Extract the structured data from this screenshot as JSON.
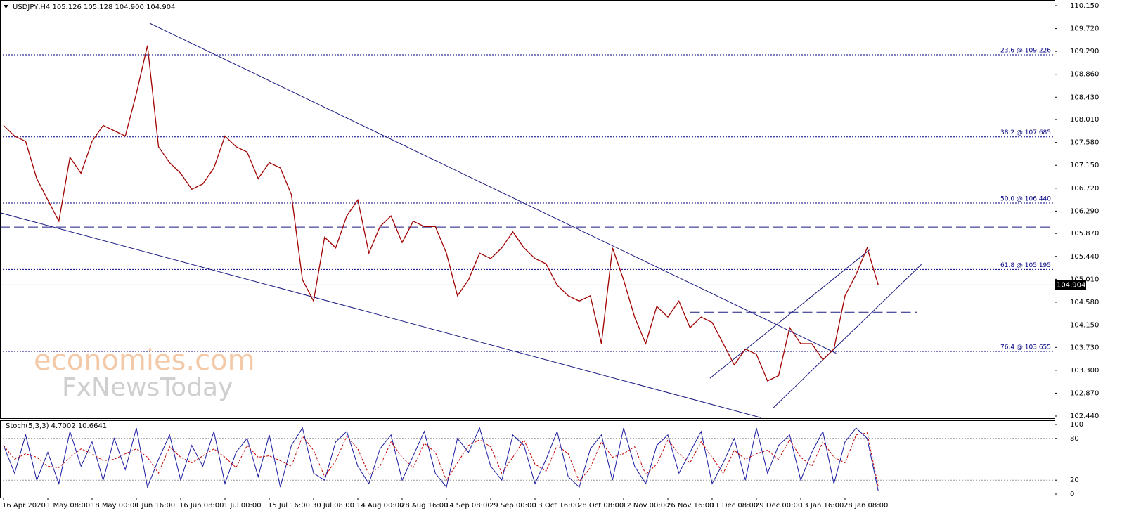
{
  "chart_data": [
    {
      "type": "line",
      "title": "USDJPY,H4  105.126 105.128 104.900 104.904",
      "color": "#a00000",
      "values": [
        107.9,
        107.7,
        107.6,
        106.9,
        106.5,
        106.1,
        107.3,
        107.0,
        107.6,
        107.9,
        107.8,
        107.7,
        108.5,
        109.4,
        107.5,
        107.2,
        107.0,
        106.7,
        106.8,
        107.1,
        107.7,
        107.5,
        107.4,
        106.9,
        107.2,
        107.1,
        106.6,
        105.0,
        104.6,
        105.8,
        105.6,
        106.2,
        106.5,
        105.5,
        106.0,
        106.2,
        105.7,
        106.1,
        106.0,
        106.0,
        105.5,
        104.7,
        105.0,
        105.5,
        105.4,
        105.6,
        105.9,
        105.6,
        105.4,
        105.3,
        104.9,
        104.7,
        104.6,
        104.7,
        103.8,
        105.6,
        105.0,
        104.3,
        103.8,
        104.5,
        104.3,
        104.6,
        104.1,
        104.3,
        104.2,
        103.8,
        103.4,
        103.7,
        103.6,
        103.1,
        103.2,
        104.1,
        103.8,
        103.8,
        103.5,
        103.7,
        104.7,
        105.1,
        105.6,
        104.904
      ],
      "ylim": [
        102.44,
        110.15
      ],
      "yticks": [
        {
          "value": 110.15,
          "label": "110.150"
        },
        {
          "value": 109.72,
          "label": "109.720"
        },
        {
          "value": 109.29,
          "label": "109.290"
        },
        {
          "value": 108.86,
          "label": "108.860"
        },
        {
          "value": 108.43,
          "label": "108.430"
        },
        {
          "value": 108.01,
          "label": "108.010"
        },
        {
          "value": 107.58,
          "label": "107.580"
        },
        {
          "value": 107.15,
          "label": "107.150"
        },
        {
          "value": 106.72,
          "label": "106.720"
        },
        {
          "value": 106.29,
          "label": "106.290"
        },
        {
          "value": 105.87,
          "label": "105.870"
        },
        {
          "value": 105.44,
          "label": "105.440"
        },
        {
          "value": 105.01,
          "label": "105.010"
        },
        {
          "value": 104.58,
          "label": "104.580"
        },
        {
          "value": 104.15,
          "label": "104.150"
        },
        {
          "value": 103.73,
          "label": "103.730"
        },
        {
          "value": 103.3,
          "label": "103.300"
        },
        {
          "value": 102.87,
          "label": "102.870"
        },
        {
          "value": 102.44,
          "label": "102.440"
        }
      ],
      "fib_levels": [
        {
          "value": 109.226,
          "label": "23.6 @ 109.226"
        },
        {
          "value": 107.685,
          "label": "38.2 @ 107.685"
        },
        {
          "value": 106.44,
          "label": "50.0 @ 106.440"
        },
        {
          "value": 105.195,
          "label": "61.8 @ 105.195"
        },
        {
          "value": 103.655,
          "label": "76.4 @ 103.655"
        }
      ],
      "fib_color": "#000080",
      "trend_lines": [
        {
          "x": [
            13.2,
            75.2
          ],
          "y": [
            109.82,
            103.62
          ]
        },
        {
          "x": [
            -0.32,
            68.4
          ],
          "y": [
            106.26,
            102.41
          ]
        },
        {
          "x": [
            69.5,
            82.9
          ],
          "y": [
            102.59,
            105.29
          ]
        },
        {
          "x": [
            63.8,
            78.2
          ],
          "y": [
            103.15,
            105.56
          ]
        }
      ],
      "dashed_lines": [
        {
          "x": [
            -0.32,
            95
          ],
          "y": 105.99
        },
        {
          "x": [
            62,
            82.5
          ],
          "y": 104.39
        }
      ],
      "trend_color": "#1a1a80",
      "watermark": [
        "economies.com",
        "FxNewsToday"
      ]
    },
    {
      "type": "stochastic",
      "title": "Stoch(5,3,3) 4.7002 10.6641",
      "categories": [
        "16 Apr 2020",
        null,
        null,
        null,
        "1 May 08:00",
        null,
        null,
        null,
        "18 May 00:00",
        null,
        null,
        null,
        "1 Jun 16:00",
        null,
        null,
        null,
        "16 Jun 08:00",
        null,
        null,
        null,
        "1 Jul 00:00",
        null,
        null,
        null,
        "15 Jul 16:00",
        null,
        null,
        null,
        "30 Jul 08:00",
        null,
        null,
        null,
        "14 Aug 00:00",
        null,
        null,
        null,
        "28 Aug 16:00",
        null,
        null,
        null,
        "14 Sep 08:00",
        null,
        null,
        null,
        "29 Sep 00:00",
        null,
        null,
        null,
        "13 Oct 16:00",
        null,
        null,
        null,
        "28 Oct 08:00",
        null,
        null,
        null,
        "12 Nov 00:00",
        null,
        null,
        null,
        "26 Nov 16:00",
        null,
        null,
        null,
        "11 Dec 08:00",
        null,
        null,
        null,
        "29 Dec 00:00",
        null,
        null,
        null,
        "13 Jan 16:00",
        null,
        null,
        null,
        "28 Jan 08:00",
        null,
        null,
        null
      ],
      "series": [
        {
          "color": "#1a1aa0",
          "values": [
            70,
            30,
            85,
            20,
            60,
            15,
            90,
            40,
            75,
            20,
            80,
            35,
            95,
            10,
            50,
            85,
            20,
            70,
            40,
            90,
            15,
            60,
            80,
            25,
            85,
            10,
            70,
            95,
            30,
            20,
            75,
            90,
            40,
            15,
            65,
            85,
            20,
            55,
            90,
            30,
            10,
            80,
            60,
            95,
            40,
            20,
            85,
            70,
            15,
            50,
            90,
            25,
            10,
            65,
            85,
            20,
            95,
            40,
            15,
            70,
            85,
            30,
            60,
            90,
            15,
            45,
            80,
            20,
            95,
            30,
            70,
            85,
            20,
            60,
            90,
            15,
            75,
            95,
            80,
            4.7002
          ]
        },
        {
          "color": "#c00000",
          "values": [
            70,
            50,
            58,
            53,
            40,
            38,
            53,
            65,
            58,
            48,
            50,
            58,
            65,
            53,
            30,
            68,
            53,
            45,
            55,
            65,
            53,
            38,
            70,
            53,
            55,
            48,
            40,
            83,
            63,
            25,
            48,
            83,
            65,
            28,
            40,
            75,
            53,
            38,
            73,
            60,
            20,
            45,
            70,
            78,
            68,
            30,
            53,
            78,
            43,
            33,
            70,
            58,
            18,
            38,
            75,
            53,
            58,
            68,
            28,
            43,
            78,
            58,
            45,
            75,
            53,
            30,
            63,
            50,
            58,
            63,
            50,
            78,
            53,
            40,
            75,
            53,
            45,
            85,
            88,
            10.6641
          ]
        }
      ],
      "ylim": [
        0,
        100
      ],
      "yticks": [
        0,
        20,
        80,
        100
      ]
    }
  ]
}
